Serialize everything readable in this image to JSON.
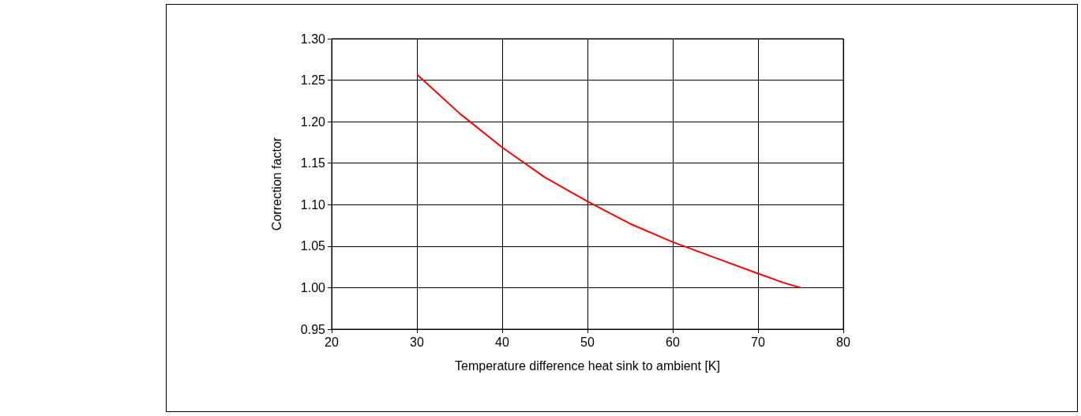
{
  "chart_data": {
    "type": "line",
    "xlabel": "Temperature difference heat sink to ambient [K]",
    "ylabel": "Correction factor",
    "series": [
      {
        "color": "#ff0000",
        "x": [
          30,
          35,
          40,
          45,
          50,
          55,
          60,
          65,
          70,
          73,
          75
        ],
        "values": [
          1.257,
          1.21,
          1.169,
          1.133,
          1.104,
          1.077,
          1.055,
          1.036,
          1.017,
          1.006,
          1.0
        ]
      }
    ],
    "xlim": [
      20,
      80
    ],
    "xticks": [
      20,
      30,
      40,
      50,
      60,
      70,
      80
    ],
    "ylim": [
      0.95,
      1.3
    ],
    "yticks": [
      0.95,
      {
        "value": 1.0,
        "label": "1.00"
      },
      1.05,
      {
        "value": 1.1,
        "label": "1.10"
      },
      1.15,
      {
        "value": 1.2,
        "label": "1.20"
      },
      1.25,
      {
        "value": 1.3,
        "label": "1.30"
      }
    ],
    "grid": true,
    "marker": "none",
    "line_style": "solid"
  }
}
